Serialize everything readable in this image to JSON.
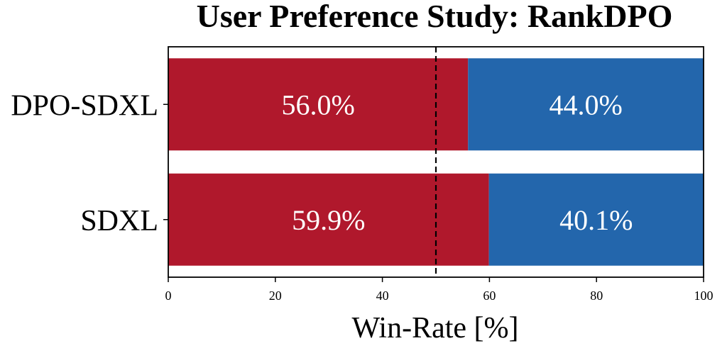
{
  "chart_data": {
    "type": "bar",
    "orientation": "horizontal",
    "stacked": true,
    "title": "User Preference Study: RankDPO",
    "xlabel": "Win-Rate [%]",
    "ylabel": "",
    "xlim": [
      0,
      100
    ],
    "xticks": [
      "0",
      "20",
      "40",
      "60",
      "80",
      "100"
    ],
    "categories": [
      "DPO-SDXL",
      "SDXL"
    ],
    "series": [
      {
        "color": "#b0182c",
        "values": [
          56.0,
          59.9
        ],
        "labels": [
          "56.0%",
          "59.9%"
        ]
      },
      {
        "color": "#2366ac",
        "values": [
          44.0,
          40.1
        ],
        "labels": [
          "44.0%",
          "40.1%"
        ]
      }
    ],
    "reference_line": {
      "x": 50,
      "style": "dashed"
    },
    "grid": false,
    "legend": "none"
  }
}
